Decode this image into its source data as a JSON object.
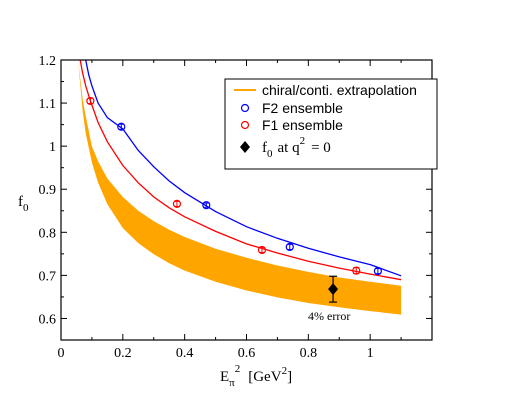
{
  "chart_data": {
    "type": "scatter",
    "ylabel": "f",
    "ylabel_sub": "0",
    "xlabel_pre": "E",
    "xlabel_sub": "π",
    "xlabel_sup": "2",
    "xlabel_post": "[GeV",
    "xlabel_post_sup": "2",
    "xlabel_close": "]",
    "xlim": [
      0,
      1.2
    ],
    "ylim": [
      0.55,
      1.2
    ],
    "x_ticks": [
      "0",
      "0.2",
      "0.4",
      "0.6",
      "0.8",
      "1"
    ],
    "x_tick_values": [
      0,
      0.2,
      0.4,
      0.6,
      0.8,
      1.0
    ],
    "y_ticks": [
      "0.6",
      "0.7",
      "0.8",
      "0.9",
      "1",
      "1.1",
      "1.2"
    ],
    "y_tick_values": [
      0.6,
      0.7,
      0.8,
      0.9,
      1.0,
      1.1,
      1.2
    ],
    "grid": false,
    "legend_placement": "top-right",
    "band": {
      "name": "chiral/conti. extrapolation",
      "color": "#ffa500",
      "x": [
        0.055,
        0.07,
        0.08,
        0.1,
        0.12,
        0.15,
        0.2,
        0.25,
        0.3,
        0.35,
        0.4,
        0.5,
        0.6,
        0.7,
        0.8,
        0.9,
        1.0,
        1.1
      ],
      "upper": [
        1.2,
        1.11,
        1.07,
        1.0,
        0.965,
        0.925,
        0.882,
        0.85,
        0.826,
        0.806,
        0.789,
        0.762,
        0.741,
        0.723,
        0.708,
        0.695,
        0.685,
        0.676
      ],
      "lower": [
        1.2,
        1.083,
        1.03,
        0.962,
        0.915,
        0.865,
        0.81,
        0.775,
        0.749,
        0.728,
        0.711,
        0.685,
        0.665,
        0.649,
        0.636,
        0.626,
        0.617,
        0.609
      ]
    },
    "series": [
      {
        "name": "F2 ensemble",
        "color": "#0000ff",
        "points": [
          {
            "x": 0.195,
            "y": 1.045,
            "err": 0.006
          },
          {
            "x": 0.47,
            "y": 0.863,
            "err": 0.005
          },
          {
            "x": 0.74,
            "y": 0.766,
            "err": 0.006
          },
          {
            "x": 1.025,
            "y": 0.71,
            "err": 0.006
          }
        ],
        "curve": {
          "x": [
            0.08,
            0.09,
            0.1,
            0.12,
            0.15,
            0.2,
            0.25,
            0.3,
            0.35,
            0.4,
            0.5,
            0.6,
            0.7,
            0.8,
            0.9,
            1.0,
            1.1
          ],
          "y": [
            1.2,
            1.165,
            1.14,
            1.1,
            1.066,
            1.04,
            0.99,
            0.952,
            0.919,
            0.892,
            0.848,
            0.813,
            0.786,
            0.763,
            0.743,
            0.725,
            0.699
          ]
        }
      },
      {
        "name": "F1 ensemble",
        "color": "#ff0000",
        "points": [
          {
            "x": 0.095,
            "y": 1.105,
            "err": 0.006
          },
          {
            "x": 0.375,
            "y": 0.866,
            "err": 0.006
          },
          {
            "x": 0.65,
            "y": 0.759,
            "err": 0.006
          },
          {
            "x": 0.955,
            "y": 0.711,
            "err": 0.007
          }
        ],
        "curve": {
          "x": [
            0.062,
            0.07,
            0.08,
            0.095,
            0.12,
            0.15,
            0.2,
            0.25,
            0.3,
            0.35,
            0.4,
            0.5,
            0.6,
            0.7,
            0.8,
            0.9,
            1.0,
            1.1
          ],
          "y": [
            1.2,
            1.17,
            1.14,
            1.105,
            1.055,
            1.01,
            0.955,
            0.915,
            0.882,
            0.857,
            0.836,
            0.802,
            0.773,
            0.752,
            0.733,
            0.717,
            0.703,
            0.69
          ]
        }
      }
    ],
    "highlight": {
      "name": "f",
      "name_sub": "0",
      "name_post": "at q",
      "name_sup": "2",
      "name_end": "= 0",
      "x": 0.88,
      "y": 0.668,
      "err": 0.03,
      "annotation": "4% error"
    },
    "legend_band": "chiral/conti. extrapolation",
    "legend_f2": "F2 ensemble",
    "legend_f1": "F1 ensemble"
  }
}
